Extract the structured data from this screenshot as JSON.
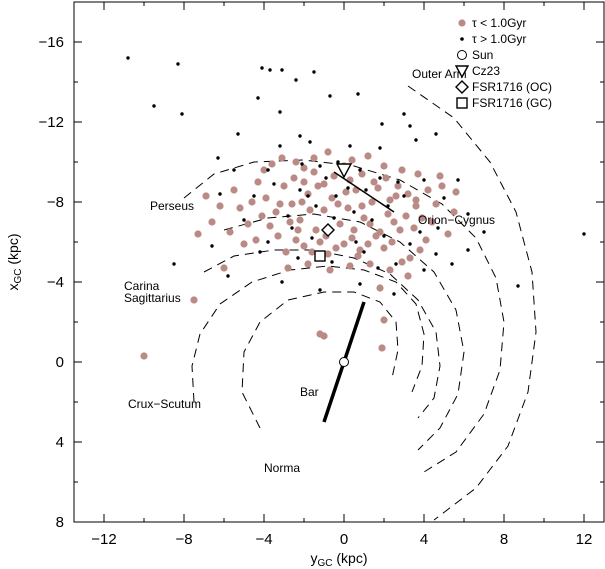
{
  "chart_data": {
    "type": "scatter",
    "xlabel": "y_GC (kpc)",
    "ylabel": "x_GC (kpc)",
    "xlim": [
      -13.5,
      13
    ],
    "ylim": [
      8,
      -18
    ],
    "xticks": [
      -12,
      -8,
      -4,
      0,
      4,
      8,
      12
    ],
    "yticks": [
      -16,
      -12,
      -8,
      -4,
      0,
      4,
      8
    ],
    "colors": {
      "young": "#b98a86",
      "old": "#000000",
      "axis": "#000000"
    },
    "legend": {
      "placement": "top-right",
      "entries": [
        {
          "label": "τ < 1.0Gyr",
          "marker": "filled-circle"
        },
        {
          "label": "τ > 1.0Gyr",
          "marker": "small-dot"
        },
        {
          "label": "Sun",
          "marker": "open-circle"
        },
        {
          "label": "Cz23",
          "marker": "open-triangle-down"
        },
        {
          "label": "FSR1716 (OC)",
          "marker": "open-diamond"
        },
        {
          "label": "FSR1716 (GC)",
          "marker": "open-square"
        }
      ]
    },
    "annotations": [
      {
        "text": "Outer Arm",
        "x": 3.4,
        "y": -14.2
      },
      {
        "text": "Perseus",
        "x": -9.7,
        "y": -7.6
      },
      {
        "text": "Orion−Cygnus",
        "x": 3.7,
        "y": -6.9
      },
      {
        "text": "Carina",
        "x": -11.0,
        "y": -3.6
      },
      {
        "text": "Sagittarius",
        "x": -11.0,
        "y": -3.0
      },
      {
        "text": "Crux−Scutum",
        "x": -10.8,
        "y": 2.3
      },
      {
        "text": "Bar",
        "x": -2.2,
        "y": 1.7
      },
      {
        "text": "Norma",
        "x": -4.0,
        "y": 5.5
      }
    ],
    "markers": {
      "sun": {
        "x": 0.0,
        "y": 0.0
      },
      "cz23": {
        "x": 0.0,
        "y": -9.6
      },
      "fsr1716_oc": {
        "x": -0.8,
        "y": -6.6
      },
      "fsr1716_gc": {
        "x": -1.2,
        "y": -5.3
      }
    },
    "bar_segment": {
      "x1": -1.0,
      "y1": 3.0,
      "x2": 1.0,
      "y2": -3.0
    },
    "local_segment": {
      "x1": -0.5,
      "y1": -9.5,
      "x2": 2.5,
      "y2": -7.5
    },
    "arm_lines": [
      {
        "name": "Outer Arm",
        "points": [
          [
            3.2,
            -13.8
          ],
          [
            5.5,
            -12.2
          ],
          [
            7.3,
            -10.0
          ],
          [
            8.6,
            -7.5
          ],
          [
            9.4,
            -4.5
          ],
          [
            9.6,
            -1.5
          ],
          [
            9.2,
            1.5
          ],
          [
            8.2,
            4.2
          ],
          [
            6.6,
            6.3
          ],
          [
            4.5,
            7.9
          ]
        ]
      },
      {
        "name": "Perseus",
        "points": [
          [
            -8.0,
            -8.2
          ],
          [
            -6.5,
            -9.4
          ],
          [
            -4.5,
            -10.0
          ],
          [
            -2.0,
            -10.1
          ],
          [
            0.5,
            -9.8
          ],
          [
            2.8,
            -9.1
          ],
          [
            4.9,
            -7.9
          ],
          [
            6.6,
            -6.2
          ],
          [
            7.6,
            -4.2
          ],
          [
            8.0,
            -2.0
          ],
          [
            7.8,
            0.4
          ],
          [
            7.0,
            2.6
          ],
          [
            5.6,
            4.5
          ],
          [
            4.0,
            5.5
          ]
        ]
      },
      {
        "name": "Orion-Cygnus",
        "points": [
          [
            -6.0,
            -6.6
          ],
          [
            -3.8,
            -7.2
          ],
          [
            -1.5,
            -7.4
          ],
          [
            0.8,
            -7.0
          ],
          [
            2.8,
            -6.0
          ],
          [
            4.5,
            -4.5
          ],
          [
            5.6,
            -2.6
          ],
          [
            6.0,
            -0.5
          ],
          [
            5.7,
            1.6
          ],
          [
            4.8,
            3.3
          ],
          [
            3.7,
            4.4
          ]
        ]
      },
      {
        "name": "Carina-Sagittarius",
        "points": [
          [
            -7.0,
            -4.5
          ],
          [
            -5.5,
            -5.3
          ],
          [
            -3.5,
            -5.6
          ],
          [
            -1.5,
            -5.6
          ],
          [
            0.5,
            -5.2
          ],
          [
            2.3,
            -4.4
          ],
          [
            3.7,
            -3.1
          ],
          [
            4.6,
            -1.5
          ],
          [
            4.8,
            0.2
          ],
          [
            4.5,
            1.8
          ],
          [
            3.7,
            2.8
          ]
        ]
      },
      {
        "name": "Crux-Scutum",
        "points": [
          [
            -7.5,
            2.0
          ],
          [
            -7.6,
            0.2
          ],
          [
            -7.2,
            -1.4
          ],
          [
            -6.2,
            -2.9
          ],
          [
            -4.6,
            -4.0
          ],
          [
            -2.7,
            -4.6
          ],
          [
            -0.8,
            -4.8
          ],
          [
            1.0,
            -4.6
          ],
          [
            2.6,
            -4.0
          ],
          [
            3.6,
            -2.9
          ],
          [
            4.0,
            -1.4
          ],
          [
            3.9,
            0.2
          ],
          [
            3.4,
            1.5
          ]
        ]
      },
      {
        "name": "Norma",
        "points": [
          [
            -4.2,
            3.3
          ],
          [
            -5.1,
            1.5
          ],
          [
            -5.0,
            -0.5
          ],
          [
            -4.2,
            -2.0
          ],
          [
            -2.8,
            -3.1
          ],
          [
            -1.0,
            -3.5
          ],
          [
            0.5,
            -3.5
          ],
          [
            1.8,
            -3.0
          ],
          [
            2.6,
            -2.0
          ],
          [
            2.7,
            -0.6
          ],
          [
            2.4,
            0.8
          ]
        ]
      }
    ],
    "series": [
      {
        "name": "τ < 1.0Gyr",
        "points": [
          [
            -2.6,
            -7.9
          ],
          [
            -2.2,
            -7.1
          ],
          [
            -1.8,
            -8.4
          ],
          [
            -1.4,
            -6.6
          ],
          [
            -1.0,
            -7.6
          ],
          [
            -0.6,
            -8.2
          ],
          [
            -0.2,
            -6.9
          ],
          [
            0.2,
            -7.7
          ],
          [
            0.6,
            -8.6
          ],
          [
            1.0,
            -7.2
          ],
          [
            1.4,
            -8.0
          ],
          [
            1.8,
            -6.5
          ],
          [
            2.2,
            -7.4
          ],
          [
            2.6,
            -8.3
          ],
          [
            -2.4,
            -6.1
          ],
          [
            -2.0,
            -5.8
          ],
          [
            -1.6,
            -5.5
          ],
          [
            -1.2,
            -6.0
          ],
          [
            -0.8,
            -5.4
          ],
          [
            -0.4,
            -5.7
          ],
          [
            0.0,
            -5.9
          ],
          [
            0.4,
            -6.2
          ],
          [
            0.8,
            -5.6
          ],
          [
            1.2,
            -5.9
          ],
          [
            1.6,
            -6.3
          ],
          [
            2.0,
            -5.7
          ],
          [
            2.4,
            -6.0
          ],
          [
            2.8,
            -6.6
          ],
          [
            -3.0,
            -8.8
          ],
          [
            -2.5,
            -9.2
          ],
          [
            -2.0,
            -9.0
          ],
          [
            -1.5,
            -9.5
          ],
          [
            -1.0,
            -8.9
          ],
          [
            -0.5,
            -9.3
          ],
          [
            0.3,
            -9.1
          ],
          [
            0.9,
            -9.4
          ],
          [
            1.5,
            -9.0
          ],
          [
            2.1,
            -9.2
          ],
          [
            2.7,
            -8.8
          ],
          [
            3.2,
            -8.4
          ],
          [
            3.6,
            -7.8
          ],
          [
            3.9,
            -7.2
          ],
          [
            3.5,
            -6.7
          ],
          [
            3.1,
            -7.3
          ],
          [
            -3.4,
            -7.5
          ],
          [
            -3.7,
            -6.8
          ],
          [
            -3.9,
            -8.2
          ],
          [
            -3.3,
            -6.3
          ],
          [
            -2.9,
            -5.5
          ],
          [
            -2.7,
            -7.0
          ],
          [
            -1.7,
            -7.6
          ],
          [
            -1.3,
            -8.8
          ],
          [
            -0.9,
            -6.3
          ],
          [
            -0.3,
            -7.9
          ],
          [
            0.1,
            -8.5
          ],
          [
            0.5,
            -6.6
          ],
          [
            0.9,
            -7.8
          ],
          [
            1.3,
            -6.9
          ],
          [
            1.7,
            -8.7
          ],
          [
            2.3,
            -8.1
          ],
          [
            2.5,
            -7.0
          ],
          [
            -2.1,
            -8.0
          ],
          [
            -1.1,
            -5.2
          ],
          [
            0.7,
            -5.3
          ],
          [
            -4.3,
            -9.0
          ],
          [
            -4.6,
            -8.0
          ],
          [
            -4.1,
            -7.3
          ],
          [
            -4.8,
            -6.9
          ],
          [
            -5.2,
            -7.7
          ],
          [
            -5.5,
            -8.6
          ],
          [
            -4.4,
            -6.1
          ],
          [
            -5.0,
            -5.9
          ],
          [
            -5.7,
            -6.5
          ],
          [
            -6.2,
            -7.8
          ],
          [
            -6.6,
            -7.0
          ],
          [
            -6.9,
            -8.3
          ],
          [
            -7.3,
            -6.4
          ],
          [
            -4.0,
            -9.6
          ],
          [
            -3.6,
            -9.9
          ],
          [
            -3.1,
            -10.2
          ],
          [
            -2.4,
            -10.0
          ],
          [
            4.2,
            -8.6
          ],
          [
            4.6,
            -7.9
          ],
          [
            4.9,
            -8.8
          ],
          [
            4.4,
            -7.0
          ],
          [
            5.2,
            -6.4
          ],
          [
            5.5,
            -7.5
          ],
          [
            4.1,
            -6.1
          ],
          [
            3.8,
            -5.6
          ],
          [
            3.3,
            -5.2
          ],
          [
            2.9,
            -5.0
          ],
          [
            4.8,
            -9.3
          ],
          [
            5.6,
            -8.5
          ],
          [
            3.7,
            -9.4
          ],
          [
            -1.5,
            -10.2
          ],
          [
            -0.8,
            -10.5
          ],
          [
            0.4,
            -10.1
          ],
          [
            1.2,
            -10.3
          ],
          [
            2.0,
            -9.8
          ],
          [
            -2.8,
            -4.7
          ],
          [
            -1.8,
            -4.9
          ],
          [
            -0.7,
            -4.6
          ],
          [
            0.3,
            -4.8
          ],
          [
            1.3,
            -4.9
          ],
          [
            2.3,
            -4.6
          ],
          [
            3.2,
            -4.3
          ],
          [
            1.8,
            -3.7
          ],
          [
            2.0,
            -2.1
          ],
          [
            1.9,
            -0.7
          ],
          [
            -1.2,
            -1.4
          ],
          [
            -1.0,
            -1.3
          ],
          [
            -10.0,
            -0.3
          ],
          [
            -7.5,
            -3.1
          ],
          [
            -6.0,
            -4.7
          ],
          [
            -2.0,
            -9.7
          ],
          [
            2.9,
            -9.6
          ],
          [
            3.6,
            -8.1
          ],
          [
            -3.2,
            -7.9
          ],
          [
            -2.3,
            -6.6
          ],
          [
            0.0,
            -9.8
          ]
        ]
      },
      {
        "name": "τ > 1.0Gyr",
        "points": [
          [
            -10.8,
            -15.2
          ],
          [
            -8.3,
            -14.9
          ],
          [
            -9.5,
            -12.8
          ],
          [
            -8.1,
            -12.4
          ],
          [
            -4.1,
            -14.7
          ],
          [
            -3.7,
            -14.6
          ],
          [
            -3.1,
            -14.6
          ],
          [
            -2.4,
            -14.1
          ],
          [
            -1.5,
            -14.5
          ],
          [
            -3.2,
            -12.5
          ],
          [
            -4.3,
            -13.2
          ],
          [
            -0.7,
            -13.3
          ],
          [
            -2.2,
            -11.3
          ],
          [
            0.7,
            -13.4
          ],
          [
            1.9,
            -11.9
          ],
          [
            3.0,
            -12.4
          ],
          [
            3.3,
            -11.8
          ],
          [
            4.6,
            -11.4
          ],
          [
            3.6,
            -11.1
          ],
          [
            -5.3,
            -11.4
          ],
          [
            -3.2,
            -10.8
          ],
          [
            0.3,
            -10.8
          ],
          [
            1.8,
            -10.7
          ],
          [
            -1.7,
            -11.0
          ],
          [
            -6.3,
            -10.2
          ],
          [
            -5.5,
            -9.6
          ],
          [
            -2.1,
            -9.9
          ],
          [
            -1.2,
            -9.8
          ],
          [
            -0.3,
            -10.0
          ],
          [
            0.8,
            -9.6
          ],
          [
            1.8,
            -9.2
          ],
          [
            2.7,
            -9.0
          ],
          [
            4.0,
            -9.1
          ],
          [
            5.7,
            -9.1
          ],
          [
            5.0,
            -8.2
          ],
          [
            6.2,
            -7.4
          ],
          [
            7.0,
            -6.5
          ],
          [
            6.2,
            -5.6
          ],
          [
            4.7,
            -6.7
          ],
          [
            3.0,
            -8.3
          ],
          [
            3.8,
            -6.5
          ],
          [
            2.2,
            -7.8
          ],
          [
            1.4,
            -7.1
          ],
          [
            0.5,
            -7.5
          ],
          [
            -0.4,
            -8.3
          ],
          [
            -1.4,
            -7.8
          ],
          [
            -2.2,
            -8.6
          ],
          [
            -3.5,
            -8.9
          ],
          [
            -4.5,
            -8.3
          ],
          [
            -6.2,
            -8.4
          ],
          [
            -5.0,
            -7.1
          ],
          [
            -3.8,
            -6.0
          ],
          [
            -2.6,
            -6.7
          ],
          [
            -1.6,
            -6.2
          ],
          [
            -0.5,
            -7.2
          ],
          [
            0.6,
            -6.0
          ],
          [
            2.0,
            -6.3
          ],
          [
            3.3,
            -5.9
          ],
          [
            4.6,
            -5.4
          ],
          [
            5.4,
            -4.9
          ],
          [
            4.0,
            -4.6
          ],
          [
            2.6,
            -4.9
          ],
          [
            1.0,
            -5.5
          ],
          [
            -0.6,
            -5.0
          ],
          [
            -2.3,
            -5.2
          ],
          [
            -4.2,
            -5.5
          ],
          [
            -6.6,
            -5.8
          ],
          [
            -8.5,
            -4.9
          ],
          [
            -5.8,
            -4.3
          ],
          [
            -3.1,
            -4.0
          ],
          [
            -1.2,
            -3.6
          ],
          [
            0.8,
            -3.9
          ],
          [
            2.5,
            -3.4
          ],
          [
            1.7,
            -4.7
          ],
          [
            8.7,
            -3.8
          ],
          [
            12.0,
            -6.4
          ],
          [
            -1.8,
            -8.3
          ],
          [
            -0.9,
            -9.2
          ],
          [
            0.2,
            -8.7
          ],
          [
            1.1,
            -8.6
          ],
          [
            -2.8,
            -7.3
          ],
          [
            -3.8,
            -9.6
          ]
        ]
      }
    ]
  }
}
